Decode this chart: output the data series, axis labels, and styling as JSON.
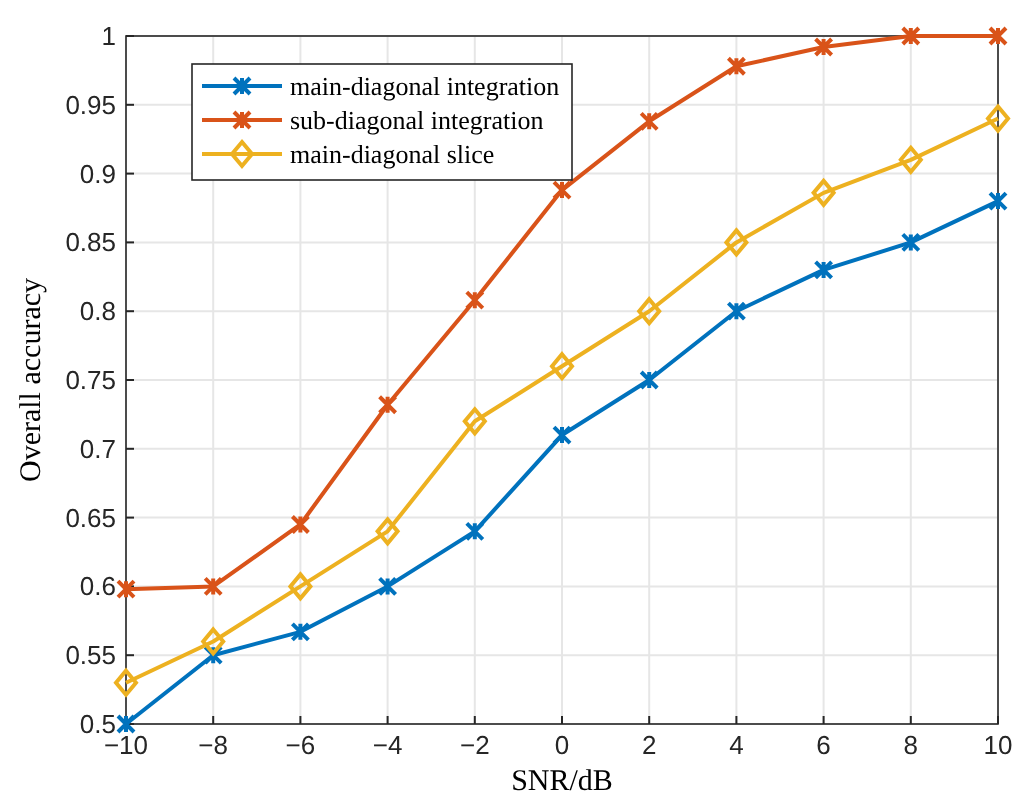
{
  "chart_data": {
    "type": "line",
    "xlabel": "SNR/dB",
    "ylabel": "Overall accuracy",
    "x": [
      -10,
      -8,
      -6,
      -4,
      -2,
      0,
      2,
      4,
      6,
      8,
      10
    ],
    "series": [
      {
        "name": "main-diagonal integration",
        "color": "#0072bd",
        "marker": "cross",
        "values": [
          0.5,
          0.55,
          0.567,
          0.6,
          0.64,
          0.71,
          0.75,
          0.8,
          0.83,
          0.85,
          0.88
        ]
      },
      {
        "name": "sub-diagonal integration",
        "color": "#d95319",
        "marker": "cross",
        "values": [
          0.598,
          0.6,
          0.645,
          0.732,
          0.808,
          0.888,
          0.938,
          0.978,
          0.992,
          1,
          1
        ]
      },
      {
        "name": "main-diagonal slice",
        "color": "#edb120",
        "marker": "diamond",
        "values": [
          0.53,
          0.56,
          0.6,
          0.64,
          0.72,
          0.76,
          0.8,
          0.85,
          0.886,
          0.91,
          0.94
        ]
      }
    ],
    "xlim": [
      -10,
      10
    ],
    "xticks": [
      {
        "value": -10,
        "label": "−10"
      },
      {
        "value": -8,
        "label": "−8"
      },
      {
        "value": -6,
        "label": "−6"
      },
      {
        "value": -4,
        "label": "−4"
      },
      {
        "value": -2,
        "label": "−2"
      },
      0,
      2,
      4,
      6,
      8,
      10
    ],
    "ylim": [
      0.5,
      1
    ],
    "yticks": [
      0.5,
      0.55,
      0.6,
      0.65,
      0.7,
      0.75,
      0.8,
      0.85,
      0.9,
      0.95,
      1
    ],
    "grid": true,
    "legend": "top left",
    "line_style": "solid"
  }
}
